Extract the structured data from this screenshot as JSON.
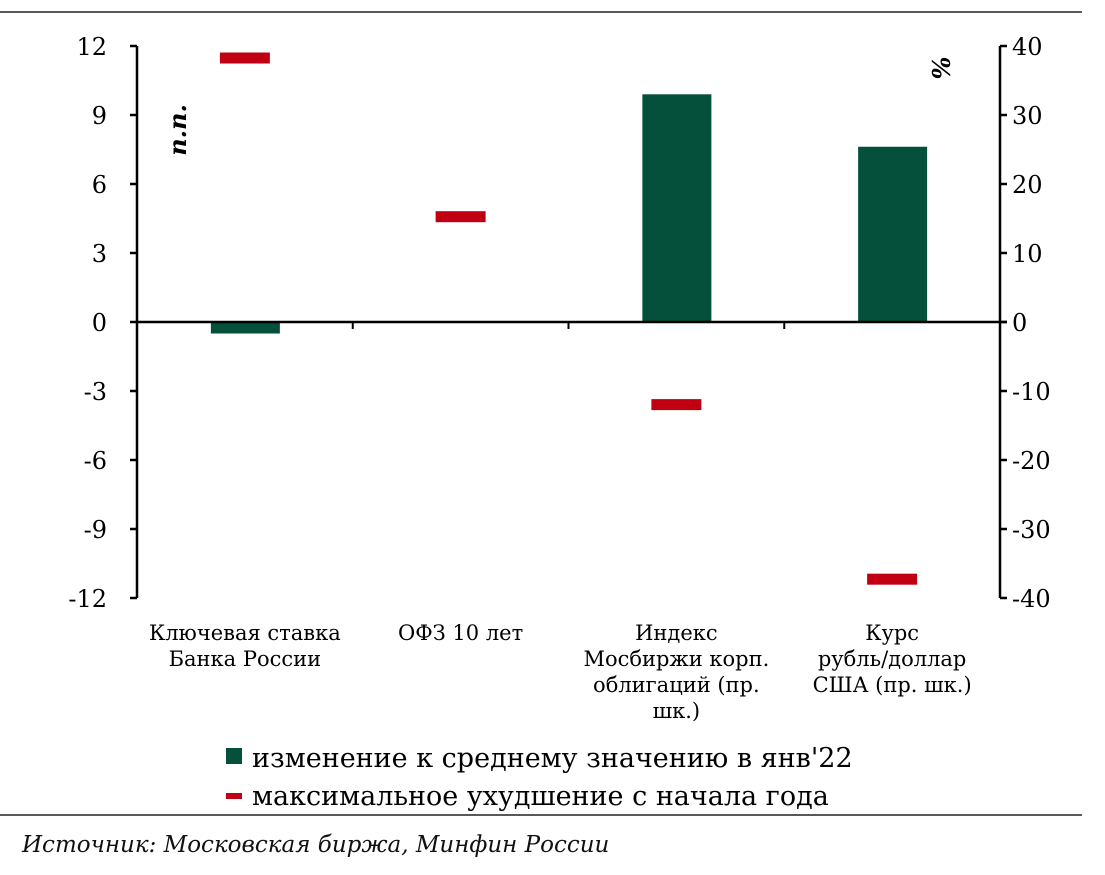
{
  "chart_data": {
    "type": "bar",
    "categories": [
      [
        "Ключевая ставка",
        "Банка России"
      ],
      [
        "ОФЗ 10 лет"
      ],
      [
        "Индекс",
        "Мосбиржи корп.",
        "облигаций (пр.",
        "шк.)"
      ],
      [
        "Курс",
        "рубль/доллар",
        "США (пр. шк.)"
      ]
    ],
    "axis_of_category": [
      "left",
      "left",
      "right",
      "right"
    ],
    "left_axis": {
      "label": "п.п.",
      "ylim": [
        -12,
        12
      ],
      "ticks": [
        12,
        9,
        6,
        3,
        0,
        -3,
        -6,
        -9,
        -12
      ]
    },
    "right_axis": {
      "label": "%",
      "ylim": [
        -40,
        40
      ],
      "ticks": [
        40,
        30,
        20,
        10,
        0,
        -10,
        -20,
        -30,
        -40
      ]
    },
    "series": [
      {
        "name": "изменение к среднему значению в янв'22",
        "kind": "bar",
        "color": "#04503a",
        "values": [
          -0.5,
          0,
          33.0,
          25.4
        ]
      },
      {
        "name": "максимальное ухудшение с начала года",
        "kind": "marker",
        "color": "#c00012",
        "values": [
          11.5,
          4.6,
          -11.9,
          -37.2
        ]
      }
    ],
    "legend": "bottom"
  },
  "source": "Источник: Московская биржа, Минфин России"
}
